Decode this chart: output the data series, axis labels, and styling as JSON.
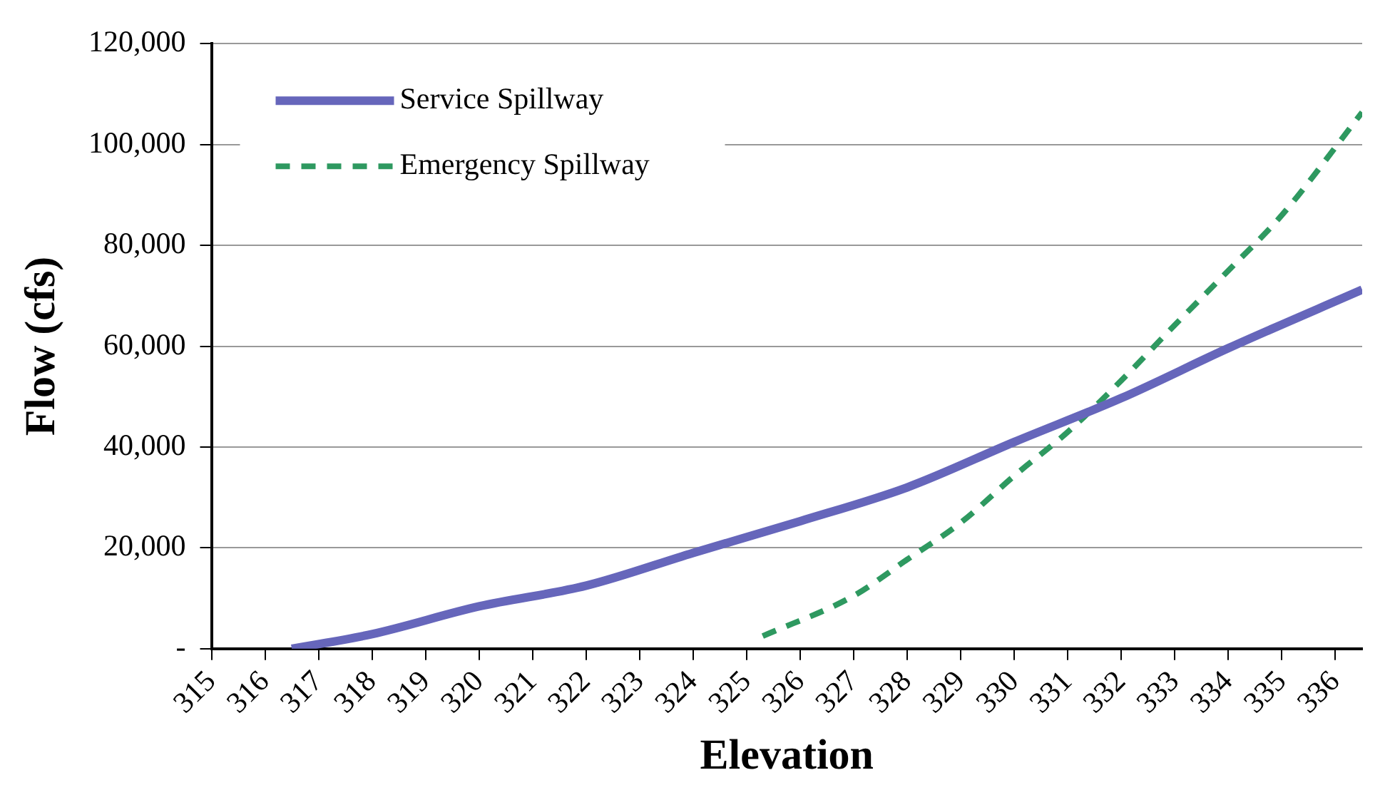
{
  "chart_data": {
    "type": "line",
    "xlabel": "Elevation",
    "ylabel": "Flow (cfs)",
    "xlim": [
      315,
      336.5
    ],
    "xticks": [
      315,
      316,
      317,
      318,
      319,
      320,
      321,
      322,
      323,
      324,
      325,
      326,
      327,
      328,
      329,
      330,
      331,
      332,
      333,
      334,
      335,
      336
    ],
    "ylim": [
      0,
      120000
    ],
    "yticks": [
      {
        "value": 0,
        "label": "-"
      },
      {
        "value": 20000,
        "label": "20,000"
      },
      {
        "value": 40000,
        "label": "40,000"
      },
      {
        "value": 60000,
        "label": "60,000"
      },
      {
        "value": 80000,
        "label": "80,000"
      },
      {
        "value": 100000,
        "label": "100,000"
      },
      {
        "value": 120000,
        "label": "120,000"
      }
    ],
    "grid": "y",
    "legend": "top left",
    "marker": "none",
    "series": [
      {
        "name": "Service Spillway",
        "color": "#6666bb",
        "line_style": "solid",
        "x": [
          316.5,
          318,
          320,
          322,
          324,
          326,
          328,
          330,
          332,
          334,
          336.5
        ],
        "values": [
          0,
          2900,
          8400,
          12500,
          19000,
          25300,
          32000,
          41000,
          49700,
          59600,
          71200
        ]
      },
      {
        "name": "Emergency Spillway",
        "color": "#2e9960",
        "line_style": "dashed",
        "x": [
          325.3,
          327,
          328,
          329,
          330,
          331,
          332,
          333,
          334,
          335,
          336.5
        ],
        "values": [
          2500,
          10500,
          17700,
          25000,
          34300,
          43000,
          53200,
          64200,
          75000,
          86000,
          106400
        ]
      }
    ]
  }
}
